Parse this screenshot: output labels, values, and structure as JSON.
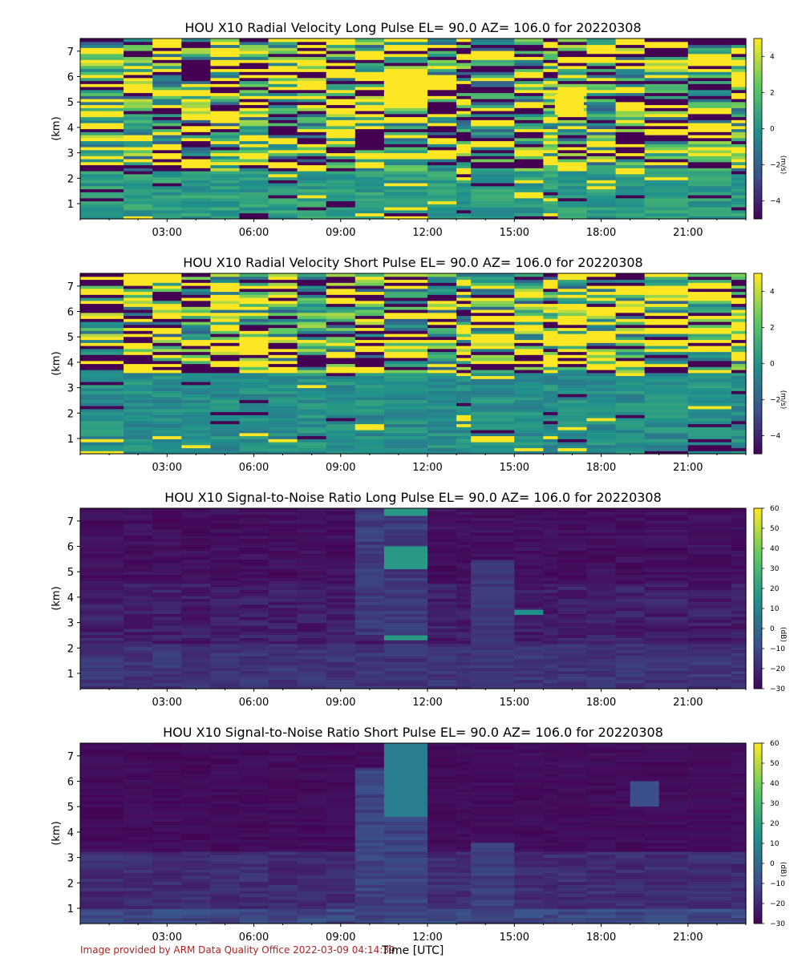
{
  "figure": {
    "xlabel": "Time [UTC]",
    "footer": "Image provided by ARM Data Quality Office 2022-03-09 04:14:39"
  },
  "colors": {
    "viridis": [
      "#440154",
      "#3b528b",
      "#21918c",
      "#5ec962",
      "#fde725"
    ]
  },
  "chart_data": [
    {
      "type": "heatmap",
      "title": "HOU X10 Radial Velocity Long Pulse EL= 90.0 AZ= 106.0 for 20220308",
      "ylabel": "(km)",
      "xticks": [
        "03:00",
        "06:00",
        "09:00",
        "12:00",
        "15:00",
        "18:00",
        "21:00"
      ],
      "yticks": [
        1,
        2,
        3,
        4,
        5,
        6,
        7
      ],
      "ylim": [
        0.4,
        7.5
      ],
      "colorbar": {
        "label": "(m/s)",
        "ticks": [
          4,
          2,
          0,
          -2,
          -4
        ],
        "range": [
          -5,
          5
        ]
      },
      "colormap": "viridis",
      "pattern": "velocity",
      "highlights": [
        {
          "t0": 10.5,
          "t1": 12.0,
          "z0": 5.1,
          "z1": 6.2,
          "v": 5
        },
        {
          "t0": 16.4,
          "t1": 17.4,
          "z0": 4.5,
          "z1": 5.3,
          "v": 5
        }
      ]
    },
    {
      "type": "heatmap",
      "title": "HOU X10 Radial Velocity Short Pulse EL= 90.0 AZ= 106.0 for 20220308",
      "ylabel": "(km)",
      "xticks": [
        "03:00",
        "06:00",
        "09:00",
        "12:00",
        "15:00",
        "18:00",
        "21:00"
      ],
      "yticks": [
        1,
        2,
        3,
        4,
        5,
        6,
        7
      ],
      "ylim": [
        0.4,
        7.5
      ],
      "colorbar": {
        "label": "(m/s)",
        "ticks": [
          4,
          2,
          0,
          -2,
          -4
        ],
        "range": [
          -5,
          5
        ]
      },
      "colormap": "viridis",
      "pattern": "velocity_short",
      "highlights": []
    },
    {
      "type": "heatmap",
      "title": "HOU X10 Signal-to-Noise Ratio Long Pulse EL= 90.0 AZ= 106.0 for 20220308",
      "ylabel": "(km)",
      "xticks": [
        "03:00",
        "06:00",
        "09:00",
        "12:00",
        "15:00",
        "18:00",
        "21:00"
      ],
      "yticks": [
        1,
        2,
        3,
        4,
        5,
        6,
        7
      ],
      "ylim": [
        0.4,
        7.5
      ],
      "colorbar": {
        "label": "(dB)",
        "ticks": [
          60,
          50,
          40,
          30,
          20,
          10,
          0,
          -10,
          -20,
          -30
        ],
        "range": [
          -30,
          60
        ]
      },
      "colormap": "viridis",
      "pattern": "snr",
      "highlights": [
        {
          "t0": 10.5,
          "t1": 12.0,
          "z0": 5.1,
          "z1": 6.0,
          "v": 18
        },
        {
          "t0": 10.5,
          "t1": 12.0,
          "z0": 7.2,
          "z1": 7.5,
          "v": 18
        },
        {
          "t0": 10.5,
          "t1": 12.0,
          "z0": 2.3,
          "z1": 2.5,
          "v": 18
        },
        {
          "t0": 15.0,
          "t1": 16.0,
          "z0": 3.3,
          "z1": 3.5,
          "v": 15
        }
      ]
    },
    {
      "type": "heatmap",
      "title": "HOU X10 Signal-to-Noise Ratio Short Pulse EL= 90.0 AZ= 106.0 for 20220308",
      "ylabel": "(km)",
      "xticks": [
        "03:00",
        "06:00",
        "09:00",
        "12:00",
        "15:00",
        "18:00",
        "21:00"
      ],
      "yticks": [
        1,
        2,
        3,
        4,
        5,
        6,
        7
      ],
      "ylim": [
        0.4,
        7.5
      ],
      "colorbar": {
        "label": "(dB)",
        "ticks": [
          60,
          50,
          40,
          30,
          20,
          10,
          0,
          -10,
          -20,
          -30
        ],
        "range": [
          -30,
          60
        ]
      },
      "colormap": "viridis",
      "pattern": "snr_short",
      "highlights": [
        {
          "t0": 10.5,
          "t1": 12.0,
          "z0": 4.6,
          "z1": 7.5,
          "v": 8
        },
        {
          "t0": 19.0,
          "t1": 20.0,
          "z0": 5.0,
          "z1": 6.0,
          "v": -8
        }
      ]
    }
  ]
}
